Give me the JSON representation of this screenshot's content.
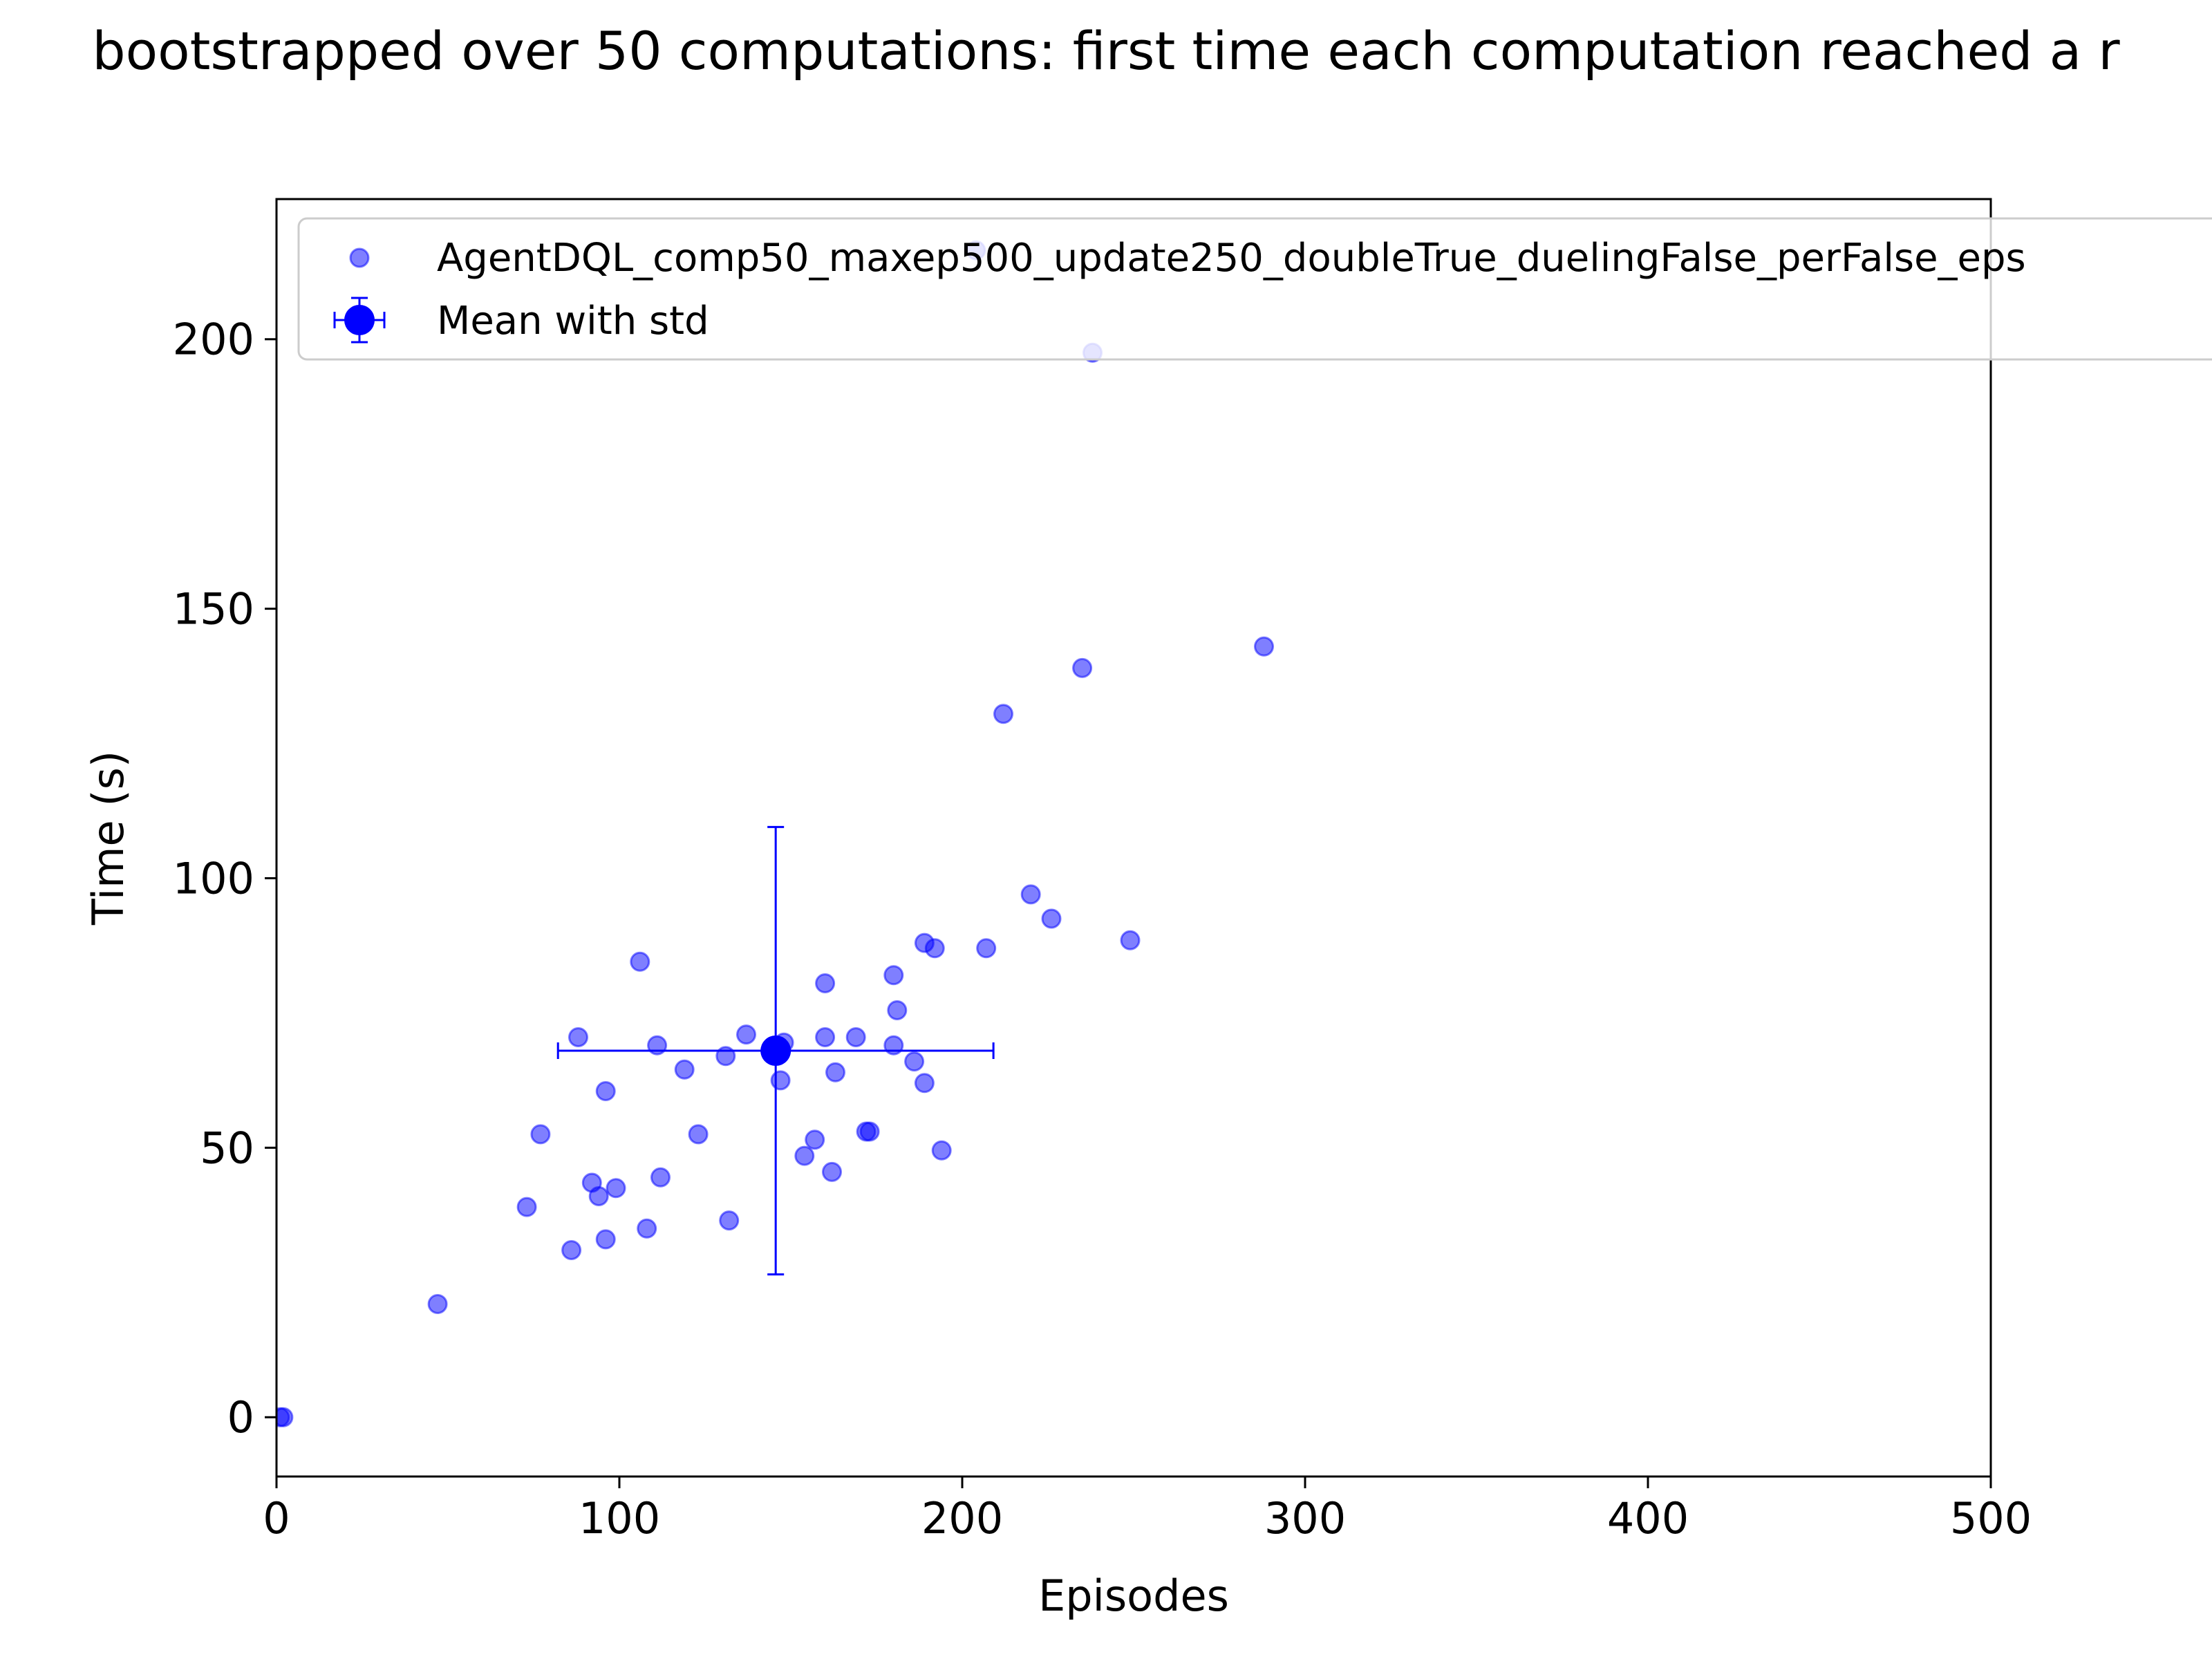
{
  "chart_data": {
    "type": "scatter",
    "title": "bootstrapped over 50 computations: first time each computation reached a r",
    "xlabel": "Episodes",
    "ylabel": "Time (s)",
    "xlim": [
      0,
      500
    ],
    "ylim": [
      -11,
      226
    ],
    "xticks": [
      0,
      100,
      200,
      300,
      400,
      500
    ],
    "yticks": [
      0,
      50,
      100,
      150,
      200
    ],
    "grid": false,
    "legend_position": "top-left",
    "series": [
      {
        "name": "AgentDQL_comp50_maxep500_update250_doubleTrue_duelingFalse_perFalse_eps",
        "kind": "points",
        "color": "#0000ff",
        "alpha": 0.5,
        "points": [
          [
            2,
            0
          ],
          [
            1,
            0
          ],
          [
            47,
            21
          ],
          [
            73,
            39
          ],
          [
            77,
            52.5
          ],
          [
            86,
            31
          ],
          [
            88,
            70.5
          ],
          [
            92,
            43.5
          ],
          [
            94,
            41
          ],
          [
            96,
            33
          ],
          [
            96,
            60.5
          ],
          [
            99,
            42.5
          ],
          [
            106,
            84.5
          ],
          [
            108,
            35
          ],
          [
            111,
            69
          ],
          [
            112,
            44.5
          ],
          [
            119,
            64.5
          ],
          [
            123,
            52.5
          ],
          [
            131,
            67
          ],
          [
            132,
            36.5
          ],
          [
            137,
            71
          ],
          [
            147,
            62.5
          ],
          [
            148,
            69.5
          ],
          [
            154,
            48.5
          ],
          [
            157,
            51.5
          ],
          [
            160,
            70.5
          ],
          [
            160,
            80.5
          ],
          [
            162,
            45.5
          ],
          [
            163,
            64
          ],
          [
            169,
            70.5
          ],
          [
            172,
            53
          ],
          [
            173,
            53
          ],
          [
            180,
            69
          ],
          [
            180,
            82
          ],
          [
            181,
            75.5
          ],
          [
            186,
            66
          ],
          [
            189,
            62
          ],
          [
            189,
            88
          ],
          [
            192,
            87
          ],
          [
            194,
            49.5
          ],
          [
            207,
            87
          ],
          [
            212,
            130.5
          ],
          [
            220,
            97
          ],
          [
            226,
            92.5
          ],
          [
            235,
            139
          ],
          [
            238,
            197.5
          ],
          [
            249,
            88.5
          ],
          [
            288,
            143
          ],
          [
            204,
            216.5
          ],
          [
            145,
            68.5
          ]
        ]
      },
      {
        "name": "Mean with std",
        "kind": "errorbar",
        "color": "#0000ff",
        "x": 145.6,
        "y": 68,
        "xerr": 63.5,
        "yerr": 41.5
      }
    ]
  }
}
